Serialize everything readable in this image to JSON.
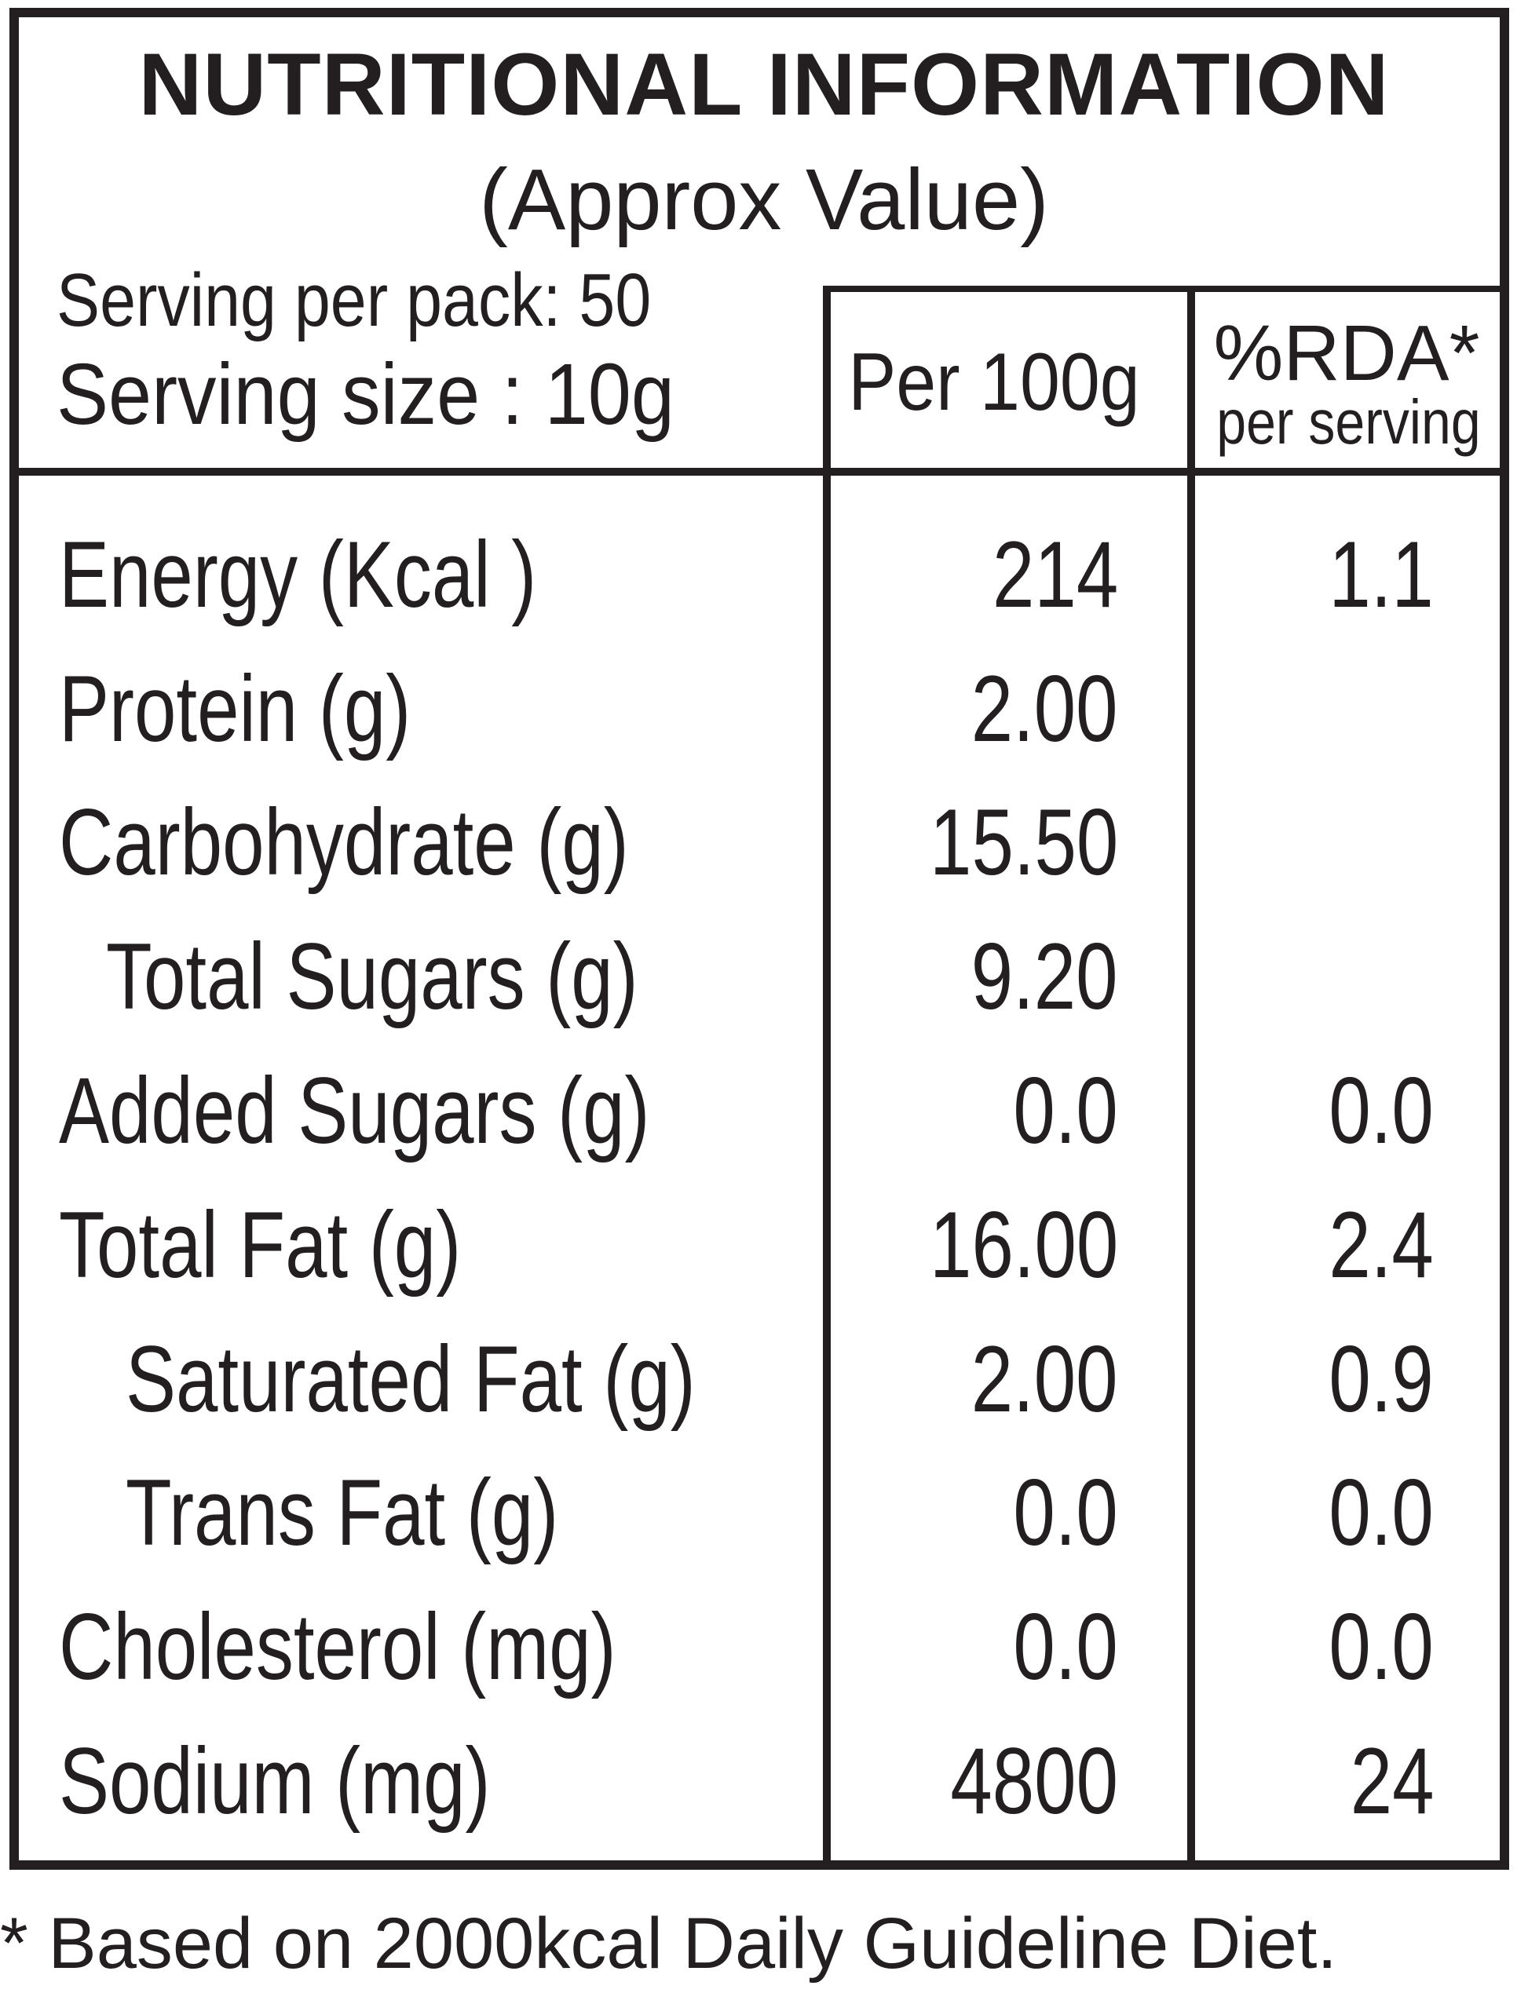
{
  "header": {
    "title": "NUTRITIONAL INFORMATION",
    "subtitle": "(Approx Value)",
    "serving_per_pack": "Serving per pack: 50",
    "serving_size": "Serving size : 10g"
  },
  "columns": {
    "per100": "Per 100g",
    "rda_top": "%RDA*",
    "rda_bottom": "per serving"
  },
  "rows": [
    {
      "label": "Energy (Kcal )",
      "per100": "214",
      "rda": "1.1"
    },
    {
      "label": "Protein (g)",
      "per100": "2.00",
      "rda": ""
    },
    {
      "label": "Carbohydrate (g)",
      "per100": "15.50",
      "rda": ""
    },
    {
      "label": "Total Sugars (g)",
      "per100": "9.20",
      "rda": ""
    },
    {
      "label": "Added Sugars (g)",
      "per100": "0.0",
      "rda": "0.0"
    },
    {
      "label": "Total Fat (g)",
      "per100": "16.00",
      "rda": "2.4"
    },
    {
      "label": "Saturated Fat (g)",
      "per100": "2.00",
      "rda": "0.9"
    },
    {
      "label": "Trans Fat (g)",
      "per100": "0.0",
      "rda": "0.0"
    },
    {
      "label": "Cholesterol (mg)",
      "per100": "0.0",
      "rda": "0.0"
    },
    {
      "label": "Sodium (mg)",
      "per100": "4800",
      "rda": "24"
    }
  ],
  "footnote": "* Based on 2000kcal Daily Guideline Diet."
}
